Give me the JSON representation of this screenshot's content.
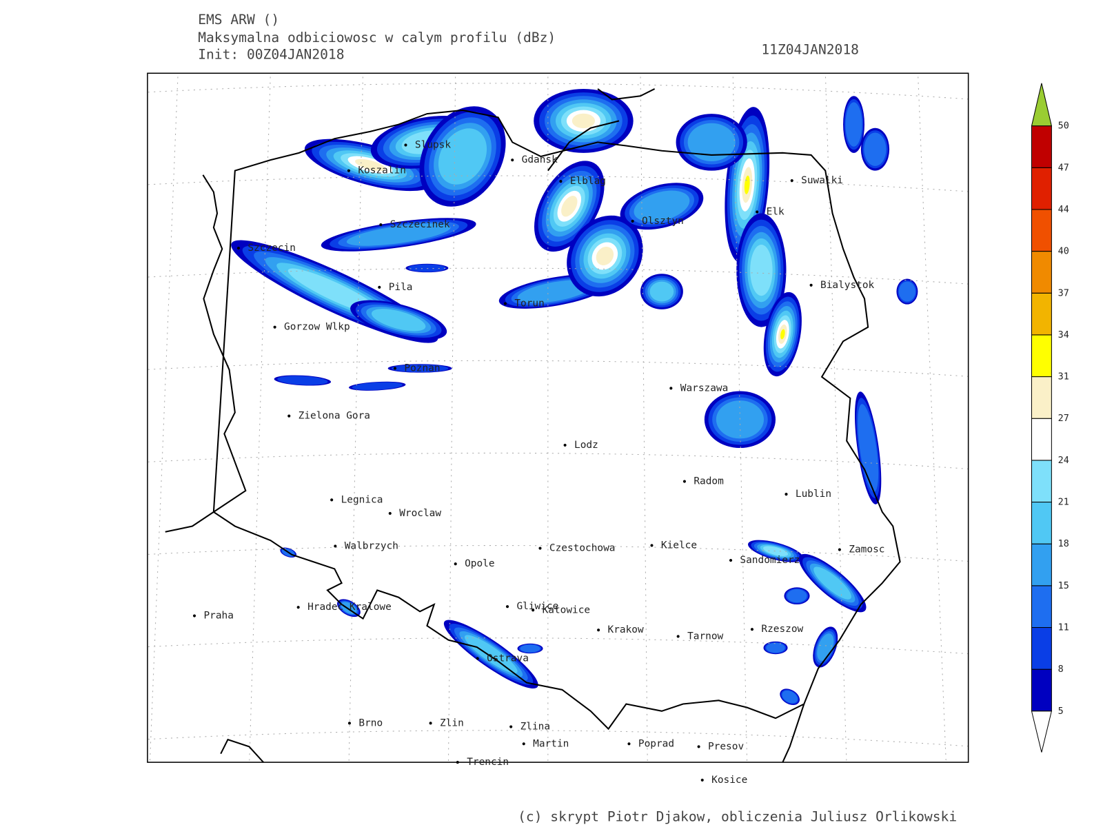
{
  "header": {
    "model": "EMS ARW ()",
    "field": "Maksymalna odbiciowosc w calym profilu (dBz)",
    "init": "Init: 00Z04JAN2018",
    "valid": "11Z04JAN2018"
  },
  "cities": [
    "Slupsk",
    "Koszalin",
    "Gdansk",
    "Elblag",
    "Suwalki",
    "Elk",
    "Olsztyn",
    "Szczecinek",
    "Szczecin",
    "Bialystok",
    "Pila",
    "Torun",
    "Gorzow Wlkp",
    "Poznan",
    "Warszawa",
    "Zielona Gora",
    "Lodz",
    "Radom",
    "Lublin",
    "Legnica",
    "Wroclaw",
    "Walbrzych",
    "Czestochowa",
    "Kielce",
    "Zamosc",
    "Sandomierz",
    "Opole",
    "Hradec Kralowe",
    "Gliwice",
    "Katowice",
    "Praha",
    "Krakow",
    "Rzeszow",
    "Tarnow",
    "Ostrava",
    "Brno",
    "Zlin",
    "Zlina",
    "Martin",
    "Poprad",
    "Presov",
    "Trencin",
    "Kosice"
  ],
  "colorbar": {
    "levels": [
      5,
      8,
      11,
      15,
      18,
      21,
      24,
      27,
      31,
      34,
      37,
      40,
      44,
      47,
      50
    ],
    "colors": [
      "#0000c0",
      "#0a3ee6",
      "#1e6ef0",
      "#32a0f0",
      "#50c8f4",
      "#7ee0fa",
      "#ffffff",
      "#faf0c8",
      "#ffff00",
      "#f2b400",
      "#f08a00",
      "#f05000",
      "#e02000",
      "#c00000"
    ],
    "over_color": "#9acd32",
    "under_color": "#ffffff"
  },
  "credit": "(c) skrypt Piotr Djakow, obliczenia Juliusz Orlikowski"
}
